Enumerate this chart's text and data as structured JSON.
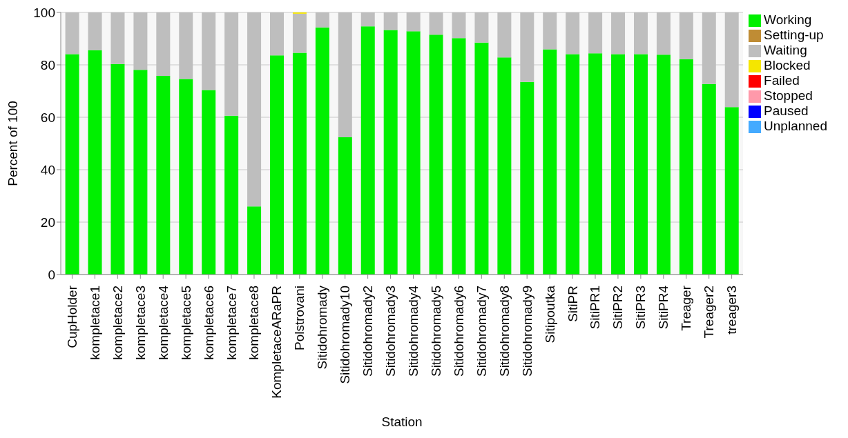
{
  "chart_data": {
    "type": "bar",
    "stacked": true,
    "xlabel": "Station",
    "ylabel": "Percent of 100",
    "categories": [
      "CupHolder",
      "kompletace1",
      "kompletace2",
      "kompletace3",
      "kompletace4",
      "kompletace5",
      "kompletace6",
      "kompletace7",
      "kompletace8",
      "KompletaceARaPR",
      "Polstrovani",
      "Sitidohromady",
      "Sitidohromady10",
      "Sitidohromady2",
      "Sitidohromady3",
      "Sitidohromady4",
      "Sitidohromady5",
      "Sitidohromady6",
      "Sitidohromady7",
      "Sitidohromady8",
      "Sitidohromady9",
      "Sitipoutka",
      "SitiPR",
      "SitiPR1",
      "SitiPR2",
      "SitiPR3",
      "SitiPR4",
      "Treager",
      "Treager2",
      "treager3"
    ],
    "series": [
      {
        "name": "Working",
        "color": "#00f000",
        "values": [
          84.1,
          85.6,
          80.3,
          78.1,
          75.8,
          74.6,
          70.4,
          60.6,
          26.0,
          83.6,
          84.6,
          94.3,
          52.4,
          94.7,
          93.3,
          92.8,
          91.5,
          90.2,
          88.5,
          82.8,
          73.5,
          85.9,
          84.1,
          84.4,
          84.1,
          84.1,
          83.9,
          82.2,
          72.7,
          63.9
        ]
      },
      {
        "name": "Setting-up",
        "color": "#bf8c34",
        "values": [
          0,
          0,
          0,
          0,
          0,
          0,
          0,
          0,
          0,
          0,
          0,
          0,
          0,
          0,
          0,
          0,
          0,
          0,
          0,
          0,
          0,
          0,
          0,
          0,
          0,
          0,
          0,
          0,
          0,
          0
        ]
      },
      {
        "name": "Waiting",
        "color": "#bebebe",
        "values": [
          15.9,
          14.4,
          19.7,
          21.9,
          24.2,
          25.4,
          29.6,
          39.4,
          74.0,
          16.4,
          14.9,
          5.7,
          47.6,
          5.3,
          6.7,
          7.2,
          8.5,
          9.8,
          11.5,
          17.2,
          26.5,
          14.1,
          15.9,
          15.6,
          15.9,
          15.9,
          16.1,
          17.8,
          27.3,
          36.1
        ]
      },
      {
        "name": "Blocked",
        "color": "#f5e600",
        "values": [
          0,
          0,
          0,
          0,
          0,
          0,
          0,
          0,
          0,
          0,
          0.5,
          0,
          0,
          0,
          0,
          0,
          0,
          0,
          0,
          0,
          0,
          0,
          0,
          0,
          0,
          0,
          0,
          0,
          0,
          0
        ]
      },
      {
        "name": "Failed",
        "color": "#ff0000",
        "values": [
          0,
          0,
          0,
          0,
          0,
          0,
          0,
          0,
          0,
          0,
          0,
          0,
          0,
          0,
          0,
          0,
          0,
          0,
          0,
          0,
          0,
          0,
          0,
          0,
          0,
          0,
          0,
          0,
          0,
          0
        ]
      },
      {
        "name": "Stopped",
        "color": "#ff99aa",
        "values": [
          0,
          0,
          0,
          0,
          0,
          0,
          0,
          0,
          0,
          0,
          0,
          0,
          0,
          0,
          0,
          0,
          0,
          0,
          0,
          0,
          0,
          0,
          0,
          0,
          0,
          0,
          0,
          0,
          0,
          0
        ]
      },
      {
        "name": "Paused",
        "color": "#0000ff",
        "values": [
          0,
          0,
          0,
          0,
          0,
          0,
          0,
          0,
          0,
          0,
          0,
          0,
          0,
          0,
          0,
          0,
          0,
          0,
          0,
          0,
          0,
          0,
          0,
          0,
          0,
          0,
          0,
          0,
          0,
          0
        ]
      },
      {
        "name": "Unplanned",
        "color": "#44aaff",
        "values": [
          0,
          0,
          0,
          0,
          0,
          0,
          0,
          0,
          0,
          0,
          0,
          0,
          0,
          0,
          0,
          0,
          0,
          0,
          0,
          0,
          0,
          0,
          0,
          0,
          0,
          0,
          0,
          0,
          0,
          0
        ]
      }
    ],
    "ylim": [
      0,
      100
    ],
    "yticks": [
      0,
      20,
      40,
      60,
      80,
      100
    ],
    "grid": "y",
    "legend": "top right"
  }
}
